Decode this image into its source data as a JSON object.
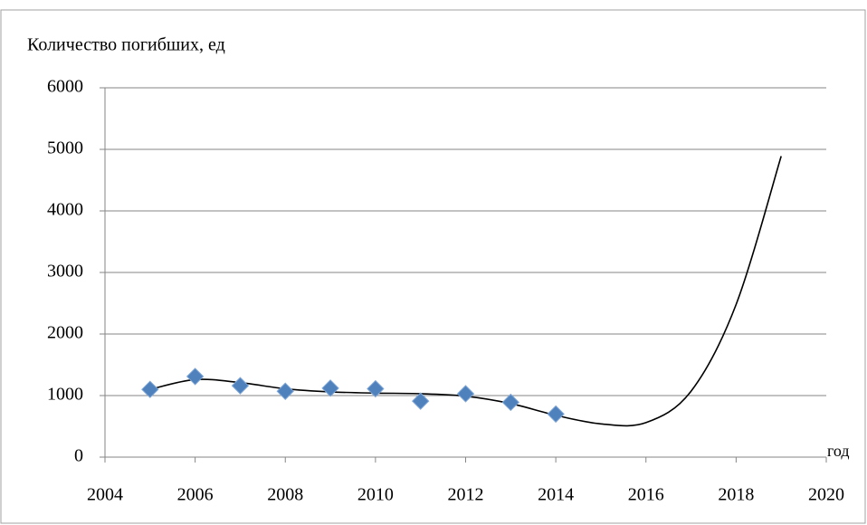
{
  "chart_data": {
    "type": "scatter",
    "y_label": "Количество погибших, ед",
    "x_label": "год",
    "xlim": [
      2004,
      2020
    ],
    "xticks": [
      2004,
      2006,
      2008,
      2010,
      2012,
      2014,
      2016,
      2018,
      2020
    ],
    "ylim": [
      0,
      6000
    ],
    "yticks": [
      0,
      1000,
      2000,
      3000,
      4000,
      5000,
      6000
    ],
    "grid": true,
    "series": [
      {
        "type": "scatter",
        "color": "#4f81bd",
        "x": [
          2005,
          2006,
          2007,
          2008,
          2009,
          2010,
          2011,
          2012,
          2013,
          2014
        ],
        "values": [
          1100,
          1310,
          1160,
          1070,
          1120,
          1110,
          910,
          1030,
          890,
          700
        ]
      },
      {
        "type": "line",
        "color": "#000000",
        "x": [
          2005,
          2006,
          2007,
          2008,
          2009,
          2010,
          2011,
          2012,
          2013,
          2014,
          2015,
          2016,
          2017,
          2018,
          2019
        ],
        "values": [
          1100,
          1260,
          1210,
          1110,
          1060,
          1040,
          1030,
          990,
          870,
          680,
          540,
          560,
          1070,
          2480,
          4890
        ]
      }
    ]
  }
}
